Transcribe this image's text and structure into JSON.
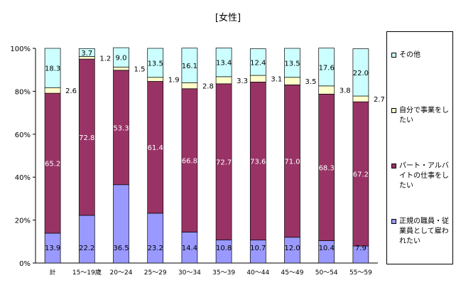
{
  "chart_data": {
    "type": "bar",
    "stacked": true,
    "percent": true,
    "title": "[女性]",
    "categories": [
      "計",
      "15～19歳",
      "20～24",
      "25～29",
      "30～34",
      "35～39",
      "40～44",
      "45～49",
      "50～54",
      "55～59"
    ],
    "ylim": [
      0,
      100
    ],
    "yticks": [
      "0%",
      "20%",
      "40%",
      "60%",
      "80%",
      "100%"
    ],
    "series": [
      {
        "name": "正規の職員・従業員として雇われたい",
        "values": [
          13.9,
          22.2,
          36.5,
          23.2,
          14.4,
          10.8,
          10.7,
          12.0,
          10.4,
          7.9
        ],
        "color": "#9999ff"
      },
      {
        "name": "パート・アルバイトの仕事をしたい",
        "values": [
          65.2,
          72.8,
          53.3,
          61.4,
          66.8,
          72.7,
          73.6,
          71.0,
          68.3,
          67.2
        ],
        "color": "#993366"
      },
      {
        "name": "自分で事業をしたい",
        "values": [
          2.6,
          1.2,
          1.5,
          1.9,
          2.8,
          3.3,
          3.1,
          3.5,
          3.8,
          2.7
        ],
        "color": "#ffffcc"
      },
      {
        "name": "その他",
        "values": [
          18.3,
          3.7,
          9.0,
          13.5,
          16.1,
          13.4,
          12.4,
          13.5,
          17.6,
          22.0
        ],
        "color": "#ccffff"
      }
    ],
    "value_labels": {
      "s0": [
        "13.9",
        "22.2",
        "36.5",
        "23.2",
        "14.4",
        "10.8",
        "10.7",
        "12.0",
        "10.4",
        "7.9"
      ],
      "s1": [
        "65.2",
        "72.8",
        "53.3",
        "61.4",
        "66.8",
        "72.7",
        "73.6",
        "71.0",
        "68.3",
        "67.2"
      ],
      "s2": [
        "2.6",
        "1.2",
        "1.5",
        "1.9",
        "2.8",
        "3.3",
        "3.1",
        "3.5",
        "3.8",
        "2.7"
      ],
      "s3": [
        "18.3",
        "3.7",
        "9.0",
        "13.5",
        "16.1",
        "13.4",
        "12.4",
        "13.5",
        "17.6",
        "22.0"
      ]
    },
    "legend": {
      "position": "right",
      "items": [
        {
          "label": "その他",
          "color": "#ccffff"
        },
        {
          "label": "自分で事業をしたい",
          "color": "#ffffcc"
        },
        {
          "label": "パート・アルバイトの仕事をしたい",
          "color": "#993366"
        },
        {
          "label": "正規の職員・従業員として雇われたい",
          "color": "#9999ff"
        }
      ]
    }
  }
}
